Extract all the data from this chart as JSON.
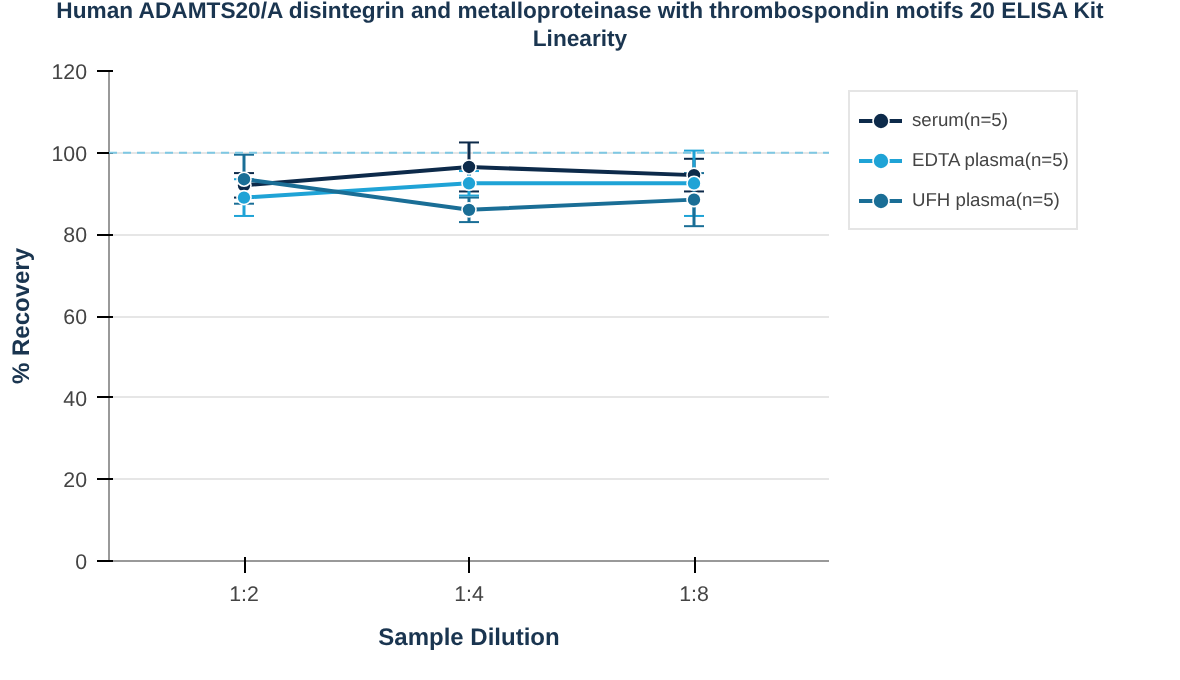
{
  "chart_data": {
    "type": "line",
    "title": "Human ADAMTS20/A disintegrin and metalloproteinase with thrombospondin motifs 20 ELISA Kit",
    "subtitle": "Linearity",
    "xlabel": "Sample Dilution",
    "ylabel": "% Recovery",
    "categories": [
      "1:2",
      "1:4",
      "1:8"
    ],
    "series": [
      {
        "name": "serum(n=5)",
        "color": "#0d2a4a",
        "values": [
          92,
          96.5,
          94.5
        ],
        "errors": [
          3,
          6,
          4
        ]
      },
      {
        "name": "EDTA plasma(n=5)",
        "color": "#1fa3d6",
        "values": [
          89,
          92.5,
          92.5
        ],
        "errors": [
          4.5,
          3,
          8
        ]
      },
      {
        "name": "UFH plasma(n=5)",
        "color": "#1a6e96",
        "values": [
          93.5,
          86,
          88.5
        ],
        "errors": [
          6,
          3,
          6.5
        ]
      }
    ],
    "ylim": [
      0,
      120
    ],
    "yticks": [
      0,
      20,
      40,
      60,
      80,
      100,
      120
    ],
    "grid": "y",
    "legend": "top right",
    "marker": "circle",
    "line_style": "solid",
    "ref_lines": [
      {
        "axis": "y",
        "value": 100,
        "label": null,
        "color": "#7ec8e3",
        "line_style": "dashed"
      }
    ]
  }
}
